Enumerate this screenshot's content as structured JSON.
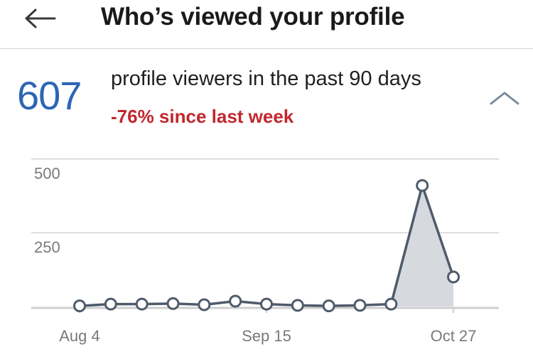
{
  "header": {
    "title": "Who’s viewed your profile",
    "back_icon": "arrow-left-icon"
  },
  "summary": {
    "count": "607",
    "description": "profile viewers in the past 90 days",
    "change": "-76% since last week",
    "collapse_icon": "chevron-up-icon"
  },
  "colors": {
    "accent": "#2d66b4",
    "negative": "#c1272d",
    "line": "#4f5b6b",
    "area": "#d6d9de"
  },
  "chart_data": {
    "type": "area",
    "x": [
      "Aug 4",
      "",
      "",
      "",
      "",
      "",
      "Sep 15",
      "",
      "",
      "",
      "",
      "",
      "Oct 27"
    ],
    "values": [
      2,
      8,
      8,
      10,
      6,
      18,
      8,
      4,
      2,
      4,
      8,
      410,
      100
    ],
    "x_tick_labels": [
      "Aug 4",
      "Sep 15",
      "Oct 27"
    ],
    "y_tick_labels": [
      "500",
      "250"
    ],
    "ylim": [
      0,
      500
    ],
    "highlight_from_index": 10,
    "grid": true,
    "title": "",
    "xlabel": "",
    "ylabel": ""
  }
}
